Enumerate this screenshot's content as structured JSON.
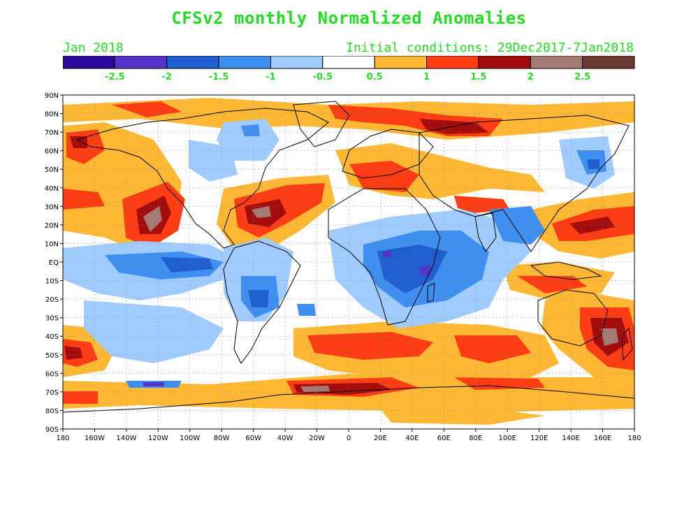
{
  "title": "CFSv2 monthly Normalized Anomalies",
  "month_label": "Jan 2018",
  "ic_label": "Initial conditions: 29Dec2017-7Jan2018",
  "text_color": "#22dd22",
  "colorbar": {
    "colors": [
      "#2a0a9a",
      "#5533cc",
      "#1f5fd0",
      "#3f8ff0",
      "#9fcbff",
      "#ffffff",
      "#ffb833",
      "#ff3d14",
      "#a30d0d",
      "#a47a72",
      "#6b3a31"
    ],
    "tick_labels": [
      "-2.5",
      "-2",
      "-1.5",
      "-1",
      "-0.5",
      "0.5",
      "1",
      "1.5",
      "2",
      "2.5"
    ]
  },
  "map": {
    "lat_labels": [
      "90N",
      "80N",
      "70N",
      "60N",
      "50N",
      "40N",
      "30N",
      "20N",
      "10N",
      "EQ",
      "10S",
      "20S",
      "30S",
      "40S",
      "50S",
      "60S",
      "70S",
      "80S",
      "90S"
    ],
    "lon_labels": [
      "180",
      "160W",
      "140W",
      "120W",
      "100W",
      "80W",
      "60W",
      "40W",
      "20W",
      "0",
      "20E",
      "40E",
      "60E",
      "80E",
      "100E",
      "120E",
      "140E",
      "160E",
      "180"
    ],
    "grid_dotted": true
  }
}
